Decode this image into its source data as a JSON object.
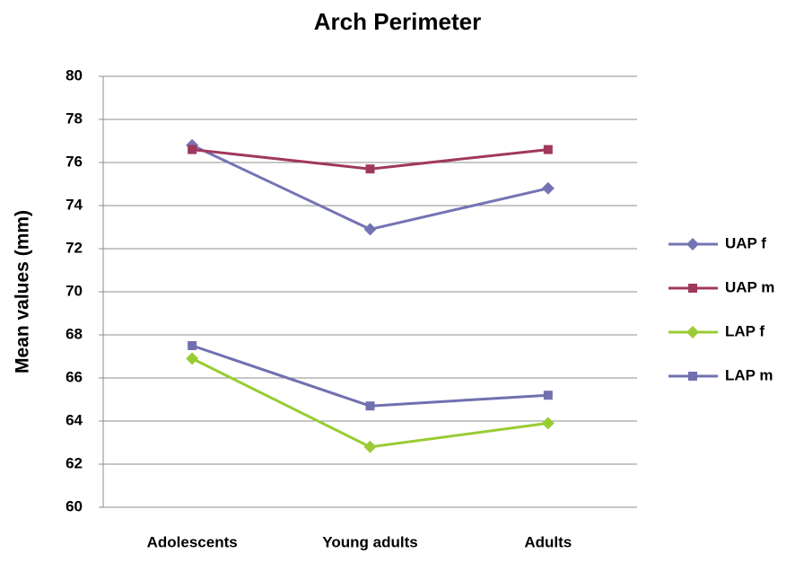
{
  "chart_data": {
    "type": "line",
    "title": "Arch Perimeter",
    "ylabel": "Mean values (mm)",
    "categories": [
      "Adolescents",
      "Young adults",
      "Adults"
    ],
    "series": [
      {
        "name": "UAP f",
        "color": "#7474b4",
        "marker": "diamond",
        "values": [
          76.8,
          72.9,
          74.8
        ]
      },
      {
        "name": "UAP m",
        "color": "#a0385e",
        "marker": "square",
        "values": [
          76.6,
          75.7,
          76.6
        ]
      },
      {
        "name": "LAP f",
        "color": "#99cc33",
        "marker": "diamond",
        "values": [
          66.9,
          62.8,
          63.9
        ]
      },
      {
        "name": "LAP m",
        "color": "#7070b0",
        "marker": "square",
        "values": [
          67.5,
          64.7,
          65.2
        ]
      }
    ],
    "ylim": [
      60,
      80
    ],
    "yticks": [
      60,
      62,
      64,
      66,
      68,
      70,
      72,
      74,
      76,
      78,
      80
    ],
    "grid": true,
    "legend": "right"
  }
}
